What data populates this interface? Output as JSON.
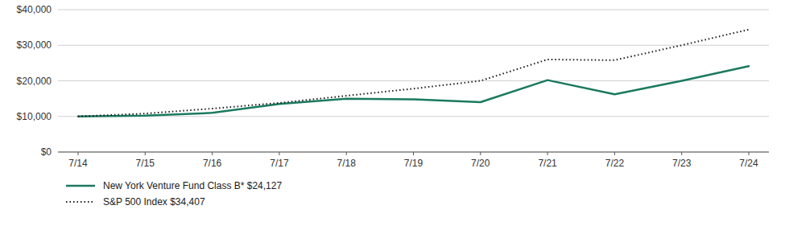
{
  "chart_data": {
    "type": "line",
    "categories": [
      "7/14",
      "7/15",
      "7/16",
      "7/17",
      "7/18",
      "7/19",
      "7/20",
      "7/21",
      "7/22",
      "7/23",
      "7/24"
    ],
    "series": [
      {
        "name": "New York Venture Fund Class B* $24,127",
        "color": "#1a7a5e",
        "line_style": "solid",
        "values": [
          10000,
          10200,
          11000,
          13500,
          15000,
          14800,
          14000,
          20200,
          16200,
          20000,
          24127
        ]
      },
      {
        "name": "S&P 500 Index $34,407",
        "color": "#1a1a1a",
        "line_style": "dotted",
        "values": [
          10000,
          10800,
          12200,
          13800,
          15800,
          17800,
          20000,
          26000,
          25800,
          30000,
          34407
        ]
      }
    ],
    "ylim": [
      0,
      40000
    ],
    "yticks": [
      {
        "value": 0,
        "label": "$0"
      },
      {
        "value": 10000,
        "label": "$10,000"
      },
      {
        "value": 20000,
        "label": "$20,000"
      },
      {
        "value": 30000,
        "label": "$30,000"
      },
      {
        "value": 40000,
        "label": "$40,000"
      }
    ],
    "grid": true,
    "legend": "bottom"
  }
}
